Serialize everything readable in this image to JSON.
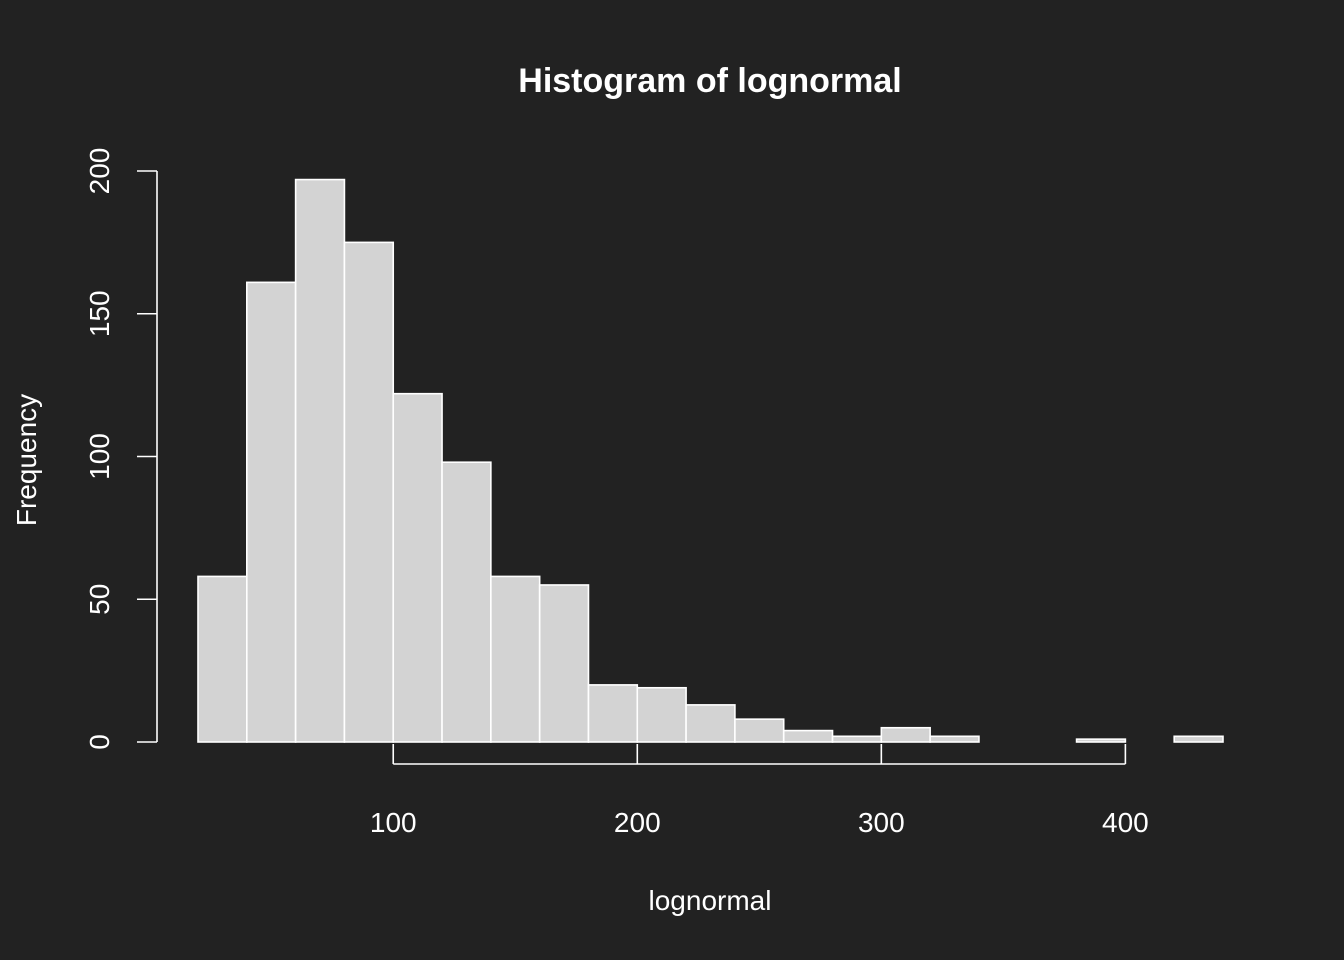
{
  "chart_data": {
    "type": "bar",
    "title": "Histogram of lognormal",
    "xlabel": "lognormal",
    "ylabel": "Frequency",
    "bin_edges": [
      20,
      40,
      60,
      80,
      100,
      120,
      140,
      160,
      180,
      200,
      220,
      240,
      260,
      280,
      300,
      320,
      340,
      360,
      380,
      400,
      420,
      440
    ],
    "values": [
      58,
      161,
      197,
      175,
      122,
      98,
      58,
      55,
      20,
      19,
      13,
      8,
      4,
      2,
      5,
      2,
      0,
      0,
      1,
      0,
      2
    ],
    "xlim": [
      20,
      440
    ],
    "ylim": [
      0,
      200
    ],
    "x_ticks": [
      100,
      200,
      300,
      400
    ],
    "y_ticks": [
      0,
      50,
      100,
      150,
      200
    ],
    "x_tick_labels": [
      "100",
      "200",
      "300",
      "400"
    ],
    "y_tick_labels": [
      "0",
      "50",
      "100",
      "150",
      "200"
    ],
    "grid": false,
    "colors": {
      "background": "#222222",
      "bar_fill": "#d3d3d3",
      "bar_stroke": "#ffffff",
      "axis": "#ffffff",
      "text": "#ffffff"
    }
  }
}
